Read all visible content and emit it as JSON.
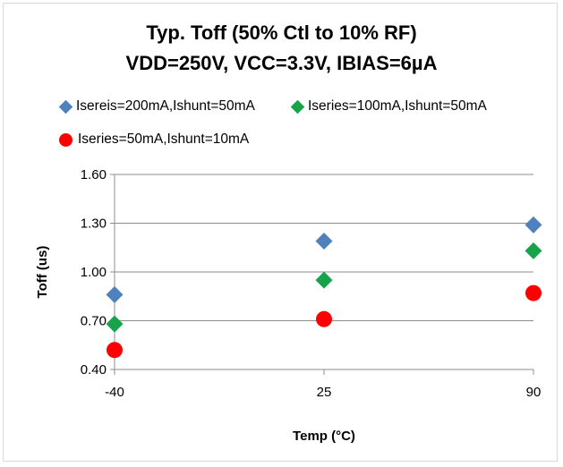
{
  "chart_data": {
    "type": "scatter",
    "title_line1": "Typ. Toff (50% Ctl to 10% RF)",
    "title_line2": "VDD=250V, VCC=3.3V, IBIAS=6µA",
    "xlabel": "Temp (°C)",
    "ylabel": "Toff (us)",
    "x_ticks": [
      "-40",
      "25",
      "90"
    ],
    "x_tick_values": [
      -40,
      25,
      90
    ],
    "y_ticks": [
      "1.60",
      "1.30",
      "1.00",
      "0.70",
      "0.40"
    ],
    "ylim": [
      0.4,
      1.6
    ],
    "xlim": [
      -40,
      90
    ],
    "grid": "horizontal",
    "legend_position": "top",
    "series": [
      {
        "name": "Isereis=200mA,Ishunt=50mA",
        "marker": "diamond",
        "color": "#4f81bd",
        "x": [
          -40,
          25,
          90
        ],
        "y": [
          0.86,
          1.19,
          1.29
        ]
      },
      {
        "name": "Iseries=100mA,Ishunt=50mA",
        "marker": "diamond",
        "color": "#16a34a",
        "x": [
          -40,
          25,
          90
        ],
        "y": [
          0.68,
          0.95,
          1.13
        ]
      },
      {
        "name": "Iseries=50mA,Ishunt=10mA",
        "marker": "circle",
        "color": "#ff0000",
        "x": [
          -40,
          25,
          90
        ],
        "y": [
          0.52,
          0.71,
          0.87
        ]
      }
    ]
  }
}
